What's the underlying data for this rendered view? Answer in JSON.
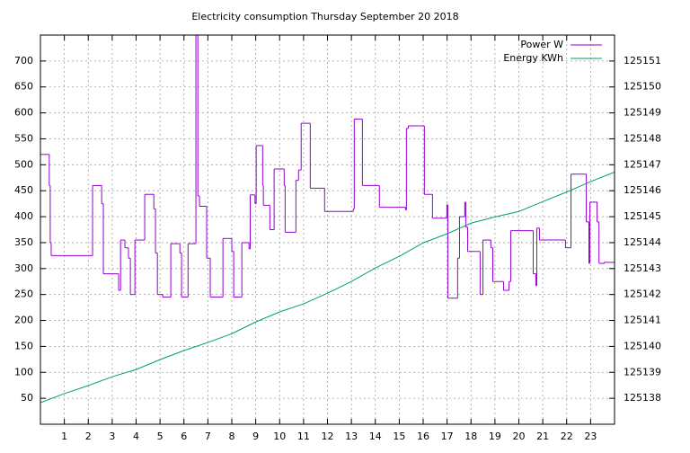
{
  "chart_data": {
    "type": "line",
    "title": "Electricity consumption Thursday September 20 2018",
    "xlim": [
      0,
      24
    ],
    "xticks": [
      1,
      2,
      3,
      4,
      5,
      6,
      7,
      8,
      9,
      10,
      11,
      12,
      13,
      14,
      15,
      16,
      17,
      18,
      19,
      20,
      21,
      22,
      23
    ],
    "ylim": [
      0,
      750
    ],
    "yticks": [
      50,
      100,
      150,
      200,
      250,
      300,
      350,
      400,
      450,
      500,
      550,
      600,
      650,
      700
    ],
    "y2lim": [
      125137,
      125152
    ],
    "y2ticks": [
      125138,
      125139,
      125140,
      125141,
      125142,
      125143,
      125144,
      125145,
      125146,
      125147,
      125148,
      125149,
      125150,
      125151
    ],
    "grid": true,
    "legend": "top-right",
    "series": [
      {
        "name": "Power W",
        "color": "#9400d3",
        "steps": true,
        "x": [
          0,
          0.37,
          0.41,
          0.45,
          2.18,
          2.56,
          2.63,
          3.27,
          3.35,
          3.53,
          3.68,
          3.76,
          3.95,
          4.36,
          4.74,
          4.81,
          4.89,
          5.11,
          5.45,
          5.83,
          5.9,
          6.17,
          6.5,
          6.58,
          6.65,
          6.95,
          7.1,
          7.63,
          8.0,
          8.08,
          8.42,
          8.72,
          8.77,
          8.97,
          9.02,
          9.29,
          9.32,
          9.59,
          9.77,
          10.19,
          10.23,
          10.68,
          10.79,
          10.9,
          11.28,
          11.88,
          13.08,
          13.12,
          13.46,
          14.17,
          15.26,
          15.3,
          15.38,
          16.05,
          16.39,
          16.99,
          17.03,
          17.44,
          17.52,
          17.74,
          17.78,
          17.86,
          18.38,
          18.5,
          18.83,
          18.91,
          19.36,
          19.59,
          19.66,
          20.6,
          20.71,
          20.75,
          20.86,
          21.95,
          22.18,
          22.82,
          22.93,
          22.97,
          23.27,
          23.35,
          23.57
        ],
        "values": [
          520,
          460,
          350,
          325,
          460,
          425,
          290,
          258,
          355,
          340,
          320,
          250,
          355,
          443,
          415,
          330,
          250,
          245,
          348,
          330,
          245,
          348,
          750,
          440,
          420,
          320,
          245,
          358,
          333,
          245,
          350,
          338,
          442,
          425,
          537,
          460,
          422,
          375,
          492,
          460,
          370,
          470,
          490,
          580,
          455,
          410,
          415,
          588,
          460,
          418,
          413,
          570,
          575,
          443,
          397,
          423,
          243,
          320,
          400,
          428,
          380,
          333,
          250,
          355,
          340,
          275,
          258,
          275,
          373,
          290,
          267,
          378,
          355,
          340,
          482,
          390,
          310,
          428,
          390,
          310,
          312
        ]
      },
      {
        "name": "Energy KWh",
        "color": "#009e73",
        "axis": "y2",
        "x": [
          0,
          1,
          2,
          3,
          4,
          5,
          6,
          7,
          8,
          9,
          10,
          11,
          12,
          13,
          14,
          15,
          16,
          17,
          18,
          19,
          20,
          21,
          22,
          23,
          24
        ],
        "values": [
          125137.83,
          125138.18,
          125138.49,
          125138.83,
          125139.11,
          125139.49,
          125139.84,
          125140.15,
          125140.49,
          125140.94,
          125141.33,
          125141.64,
          125142.05,
          125142.5,
          125143.02,
          125143.47,
          125143.99,
          125144.34,
          125144.75,
          125144.99,
          125145.2,
          125145.58,
          125145.95,
          125146.35,
          125146.72
        ]
      }
    ]
  }
}
